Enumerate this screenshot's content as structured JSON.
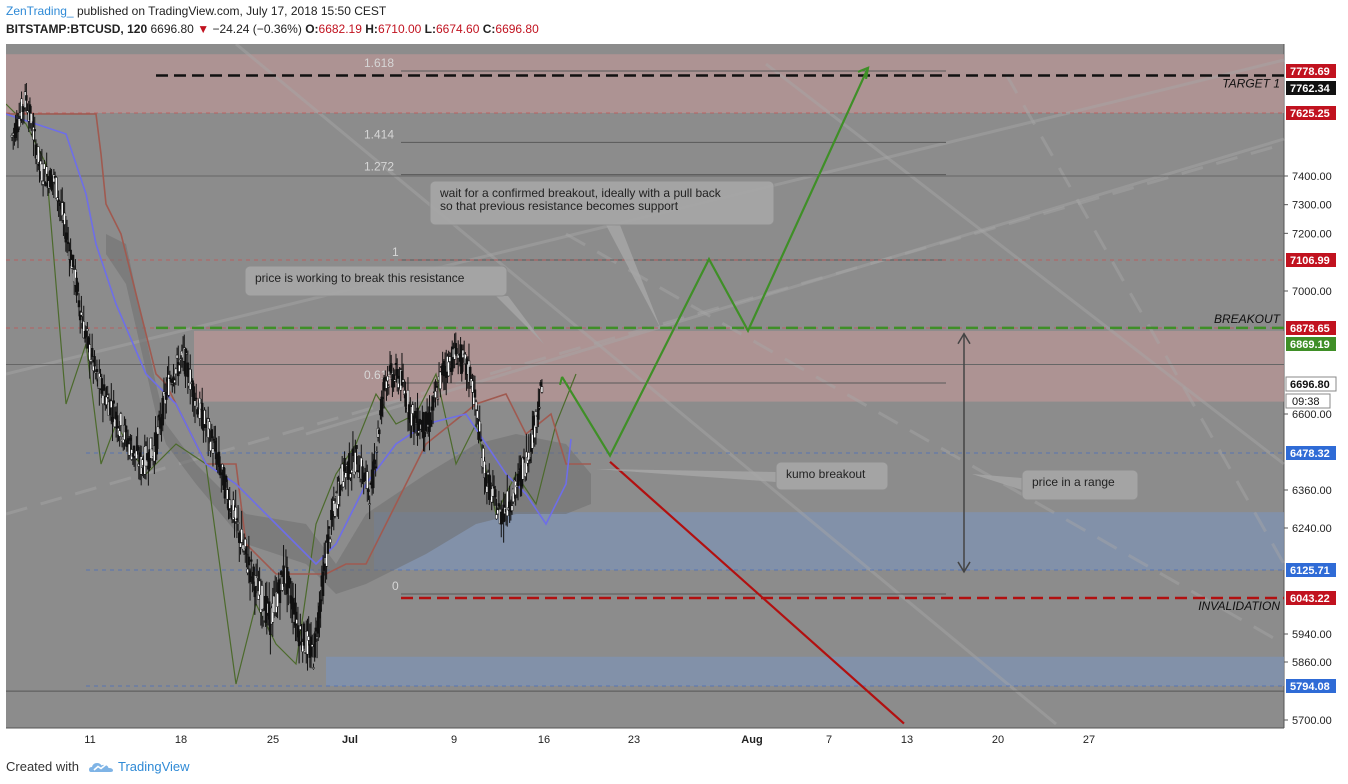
{
  "header": {
    "author": "ZenTrading_",
    "published": "published on TradingView.com, July 17, 2018 15:50 CEST",
    "symbol": "BITSTAMP:BTCUSD, 120",
    "last": "6696.80",
    "change": "−24.24 (−0.36%)",
    "o_label": "O:",
    "o_value": "6682.19",
    "h_label": "H:",
    "h_value": "6710.00",
    "l_label": "L:",
    "l_value": "6674.60",
    "c_label": "C:",
    "c_value": "6696.80"
  },
  "footer": {
    "created_with": "Created with",
    "brand": "TradingView"
  },
  "colors": {
    "plot_bg": "#8c8c8c",
    "red_zone": "#b89595",
    "blue_zone": "#7f93b3",
    "target_line": "#111111",
    "breakout_line": "#3f8f27",
    "invalidation_line": "#b21010",
    "green_arrow": "#3f8f27",
    "red_arrow": "#b21010",
    "tenkan": "#6e6ee8",
    "kijun": "#a05a50",
    "chikou": "#4c6a2c"
  },
  "chart_data": {
    "type": "candlestick",
    "symbol": "BITSTAMP:BTCUSD",
    "timeframe": "120",
    "ylim": [
      5640,
      7860
    ],
    "y_ticks": [
      7400,
      7300,
      7200,
      7000,
      6600,
      6360,
      6240,
      5940,
      5860,
      5700
    ],
    "y_tick_labels": [
      "7400.00",
      "7300.00",
      "7200.00",
      "7000.00",
      "6600.00",
      "6360.00",
      "6240.00",
      "5940.00",
      "5860.00",
      "5700.00"
    ],
    "x_ticks": [
      "11",
      "18",
      "25",
      "Jul",
      "9",
      "16",
      "23",
      "Aug",
      "7",
      "13",
      "20",
      "27"
    ],
    "price_tags": [
      {
        "value": 7778.69,
        "label": "7778.69",
        "color": "#c1121f"
      },
      {
        "value": 7762.34,
        "label": "7762.34",
        "color": "#111111"
      },
      {
        "value": 7625.25,
        "label": "7625.25",
        "color": "#c1121f"
      },
      {
        "value": 7106.99,
        "label": "7106.99",
        "color": "#c1121f"
      },
      {
        "value": 6878.65,
        "label": "6878.65",
        "color": "#c1121f"
      },
      {
        "value": 6869.19,
        "label": "6869.19",
        "color": "#3f8f27"
      },
      {
        "value": 6696.8,
        "label": "6696.80",
        "color": "#ffffff"
      },
      {
        "value": 6478.32,
        "label": "6478.32",
        "color": "#2f6bd6"
      },
      {
        "value": 6125.71,
        "label": "6125.71",
        "color": "#2f6bd6"
      },
      {
        "value": 6043.22,
        "label": "6043.22",
        "color": "#c1121f"
      },
      {
        "value": 5794.08,
        "label": "5794.08",
        "color": "#2f6bd6"
      }
    ],
    "countdown": "09:38",
    "fib_levels": [
      {
        "ratio": "1.618",
        "value": 7778.69
      },
      {
        "ratio": "1.414",
        "value": 7520
      },
      {
        "ratio": "1.272",
        "value": 7405
      },
      {
        "ratio": "1",
        "value": 7106.99
      },
      {
        "ratio": "0.618",
        "value": 6700
      },
      {
        "ratio": "0",
        "value": 6055
      }
    ],
    "horizontal_lines": [
      {
        "name": "TARGET 1",
        "value": 7762.34
      },
      {
        "name": "BREAKOUT",
        "value": 6869.19
      },
      {
        "name": "INVALIDATION",
        "value": 6043.22
      }
    ],
    "zones": [
      {
        "kind": "resistance",
        "from": 7625.25,
        "to": 7840
      },
      {
        "kind": "resistance",
        "from": 6640,
        "to": 6869.19
      },
      {
        "kind": "support",
        "from": 6125.71,
        "to": 6290
      },
      {
        "kind": "support",
        "from": 5794.08,
        "to": 5875
      }
    ],
    "candles": {
      "x_days": [
        0,
        1,
        2,
        3,
        4,
        5,
        6,
        7,
        8,
        9,
        10,
        11,
        12,
        13,
        14,
        15,
        16,
        17,
        18,
        19,
        20,
        21,
        22,
        23,
        24,
        25,
        26,
        27,
        28,
        29,
        30,
        31,
        32,
        33,
        34,
        35,
        36,
        37
      ],
      "close": [
        7540,
        7680,
        7420,
        7380,
        7150,
        6880,
        6700,
        6620,
        6520,
        6440,
        6500,
        6720,
        6780,
        6620,
        6510,
        6350,
        6200,
        6080,
        5980,
        6120,
        5950,
        5880,
        6200,
        6410,
        6460,
        6350,
        6720,
        6720,
        6580,
        6560,
        6740,
        6800,
        6720,
        6400,
        6280,
        6350,
        6480,
        6696.8
      ]
    },
    "annotations": [
      "wait for a confirmed breakout, ideally with a pull back so that previous resistance becomes support",
      "price is working to break this resistance",
      "kumo breakout",
      "price in a range"
    ],
    "projection_green": [
      [
        37.7,
        6720
      ],
      [
        41,
        6470
      ],
      [
        46,
        7110
      ],
      [
        48.5,
        6870
      ],
      [
        56,
        7790
      ]
    ],
    "projection_red": [
      [
        41,
        6450
      ],
      [
        59,
        5690
      ]
    ]
  }
}
